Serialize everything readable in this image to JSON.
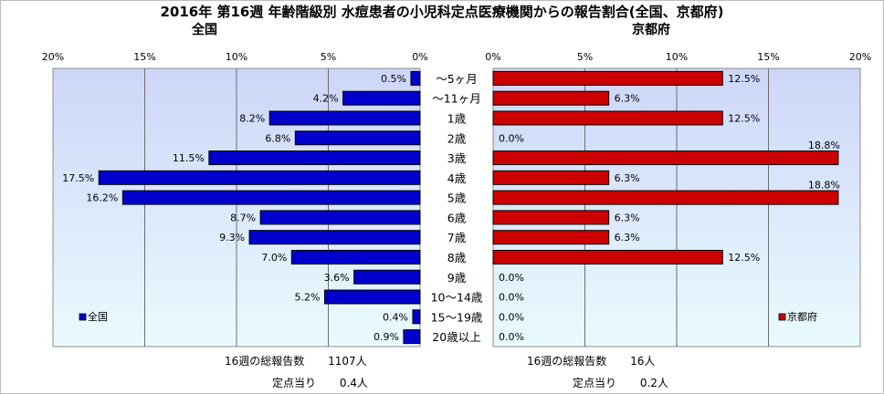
{
  "title": "2016年 第16週 年齢階級別 水痘患者の小児科定点医療機関からの報告割合(全国、京都府)",
  "colors": {
    "national_bar": "#0000cc",
    "kyoto_bar": "#cc0000",
    "plot_bg_top": "#cdd6f8",
    "plot_bg_bottom": "#e9fbfe"
  },
  "chart_data": [
    {
      "type": "bar",
      "orientation": "horizontal",
      "subtitle": "全国",
      "legend": "全国",
      "legend_position": "bottom-left",
      "x_direction": "reversed",
      "xlim": [
        0,
        20
      ],
      "tick_labels": [
        "0%",
        "5%",
        "10%",
        "15%",
        "20%"
      ],
      "categories": [
        "～5ヶ月",
        "～11ヶ月",
        "1歳",
        "2歳",
        "3歳",
        "4歳",
        "5歳",
        "6歳",
        "7歳",
        "8歳",
        "9歳",
        "10～14歳",
        "15～19歳",
        "20歳以上"
      ],
      "values": [
        0.5,
        4.2,
        8.2,
        6.8,
        11.5,
        17.5,
        16.2,
        8.7,
        9.3,
        7.0,
        3.6,
        5.2,
        0.4,
        0.9
      ],
      "labels": [
        "0.5%",
        "4.2%",
        "8.2%",
        "6.8%",
        "11.5%",
        "17.5%",
        "16.2%",
        "8.7%",
        "9.3%",
        "7.0%",
        "3.6%",
        "5.2%",
        "0.4%",
        "0.9%"
      ],
      "grid": true
    },
    {
      "type": "bar",
      "orientation": "horizontal",
      "subtitle": "京都府",
      "legend": "京都府",
      "legend_position": "bottom-right",
      "xlim": [
        0,
        20
      ],
      "tick_labels": [
        "0%",
        "5%",
        "10%",
        "15%",
        "20%"
      ],
      "categories": [
        "～5ヶ月",
        "～11ヶ月",
        "1歳",
        "2歳",
        "3歳",
        "4歳",
        "5歳",
        "6歳",
        "7歳",
        "8歳",
        "9歳",
        "10～14歳",
        "15～19歳",
        "20歳以上"
      ],
      "values": [
        12.5,
        6.3,
        12.5,
        0.0,
        18.8,
        6.3,
        18.8,
        6.3,
        6.3,
        12.5,
        0.0,
        0.0,
        0.0,
        0.0
      ],
      "labels": [
        "12.5%",
        "6.3%",
        "12.5%",
        "0.0%",
        "18.8%",
        "6.3%",
        "18.8%",
        "6.3%",
        "6.3%",
        "12.5%",
        "0.0%",
        "0.0%",
        "0.0%",
        "0.0%"
      ],
      "grid": true
    }
  ],
  "stats": {
    "national": {
      "total_label": "16週の総報告数",
      "total_value": "1107人",
      "per_label": "定点当り",
      "per_value": "0.4人"
    },
    "kyoto": {
      "total_label": "16週の総報告数",
      "total_value": "16人",
      "per_label": "定点当り",
      "per_value": "0.2人"
    }
  }
}
